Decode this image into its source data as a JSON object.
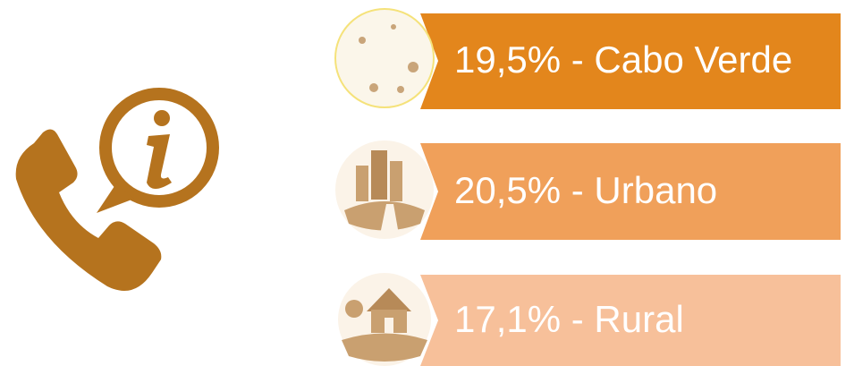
{
  "items": [
    {
      "text": "19,5% - Cabo Verde"
    },
    {
      "text": "20,5% - Urbano"
    },
    {
      "text": "17,1% - Rural"
    }
  ]
}
